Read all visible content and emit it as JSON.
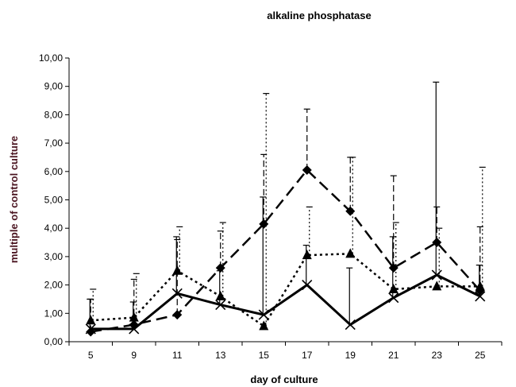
{
  "chart_data": {
    "type": "line",
    "title": "alkaline phosphatase",
    "xlabel": "day of culture",
    "ylabel": "multiple of control culture",
    "categories": [
      "5",
      "9",
      "11",
      "13",
      "15",
      "17",
      "19",
      "21",
      "23",
      "25"
    ],
    "ylim": [
      0,
      10
    ],
    "yticks": [
      "0,00",
      "1,00",
      "2,00",
      "3,00",
      "4,00",
      "5,00",
      "6,00",
      "7,00",
      "8,00",
      "9,00",
      "10,00"
    ],
    "grid": false,
    "legend": "none",
    "series": [
      {
        "marker": "x",
        "line": "solid",
        "values": [
          0.45,
          0.45,
          1.7,
          1.3,
          0.95,
          2.0,
          0.6,
          1.55,
          2.35,
          1.6
        ],
        "error_upper": [
          1.5,
          1.4,
          3.7,
          2.5,
          5.1,
          3.4,
          2.6,
          3.7,
          9.15,
          2.7
        ]
      },
      {
        "marker": "diamond",
        "line": "long-dash",
        "values": [
          0.35,
          0.6,
          0.95,
          2.6,
          4.15,
          6.05,
          4.6,
          2.6,
          3.5,
          1.8
        ],
        "error_upper": [
          1.5,
          2.2,
          3.6,
          3.9,
          6.6,
          8.2,
          6.5,
          5.85,
          4.75,
          4.05
        ]
      },
      {
        "marker": "triangle",
        "line": "dotted",
        "values": [
          0.75,
          0.85,
          2.5,
          1.6,
          0.55,
          3.05,
          3.1,
          1.85,
          1.95,
          1.95
        ],
        "error_upper": [
          1.85,
          2.4,
          4.05,
          4.2,
          8.75,
          4.75,
          6.5,
          4.2,
          4.0,
          6.15
        ]
      }
    ]
  }
}
